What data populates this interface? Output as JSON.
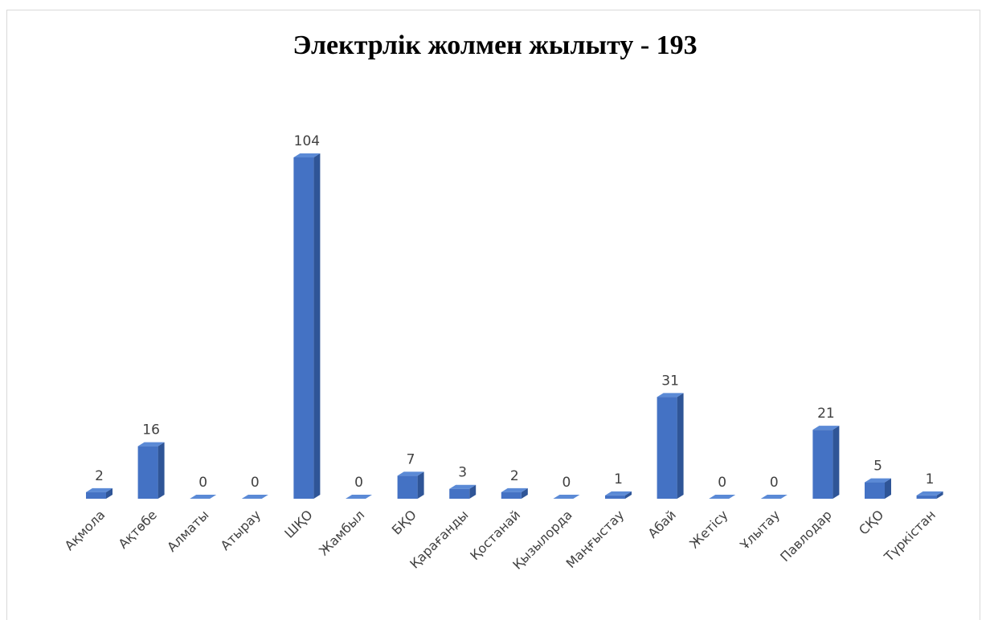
{
  "chart_data": {
    "type": "bar",
    "title": "Электрлік жолмен жылыту - 193",
    "categories": [
      "Ақмола",
      "Ақтөбе",
      "Алматы",
      "Атырау",
      "ШҚО",
      "Жамбыл",
      "БҚО",
      "Қарағанды",
      "Қостанай",
      "Қызылорда",
      "Маңғыстау",
      "Абай",
      "Жетісу",
      "Ұлытау",
      "Павлодар",
      "СҚО",
      "Түркістан"
    ],
    "values": [
      2,
      16,
      0,
      0,
      104,
      0,
      7,
      3,
      2,
      0,
      1,
      31,
      0,
      0,
      21,
      5,
      1
    ],
    "data_labels": [
      "2",
      "16",
      "0",
      "0",
      "104",
      "0",
      "7",
      "3",
      "2",
      "0",
      "1",
      "31",
      "0",
      "0",
      "21",
      "5",
      "1"
    ],
    "ylim": [
      0,
      110
    ],
    "grid": false,
    "legend": "none",
    "colors": {
      "bar_front": "#4472c4",
      "bar_side": "#2f5597",
      "bar_top": "#5b8ad6",
      "label": "#404040"
    }
  }
}
